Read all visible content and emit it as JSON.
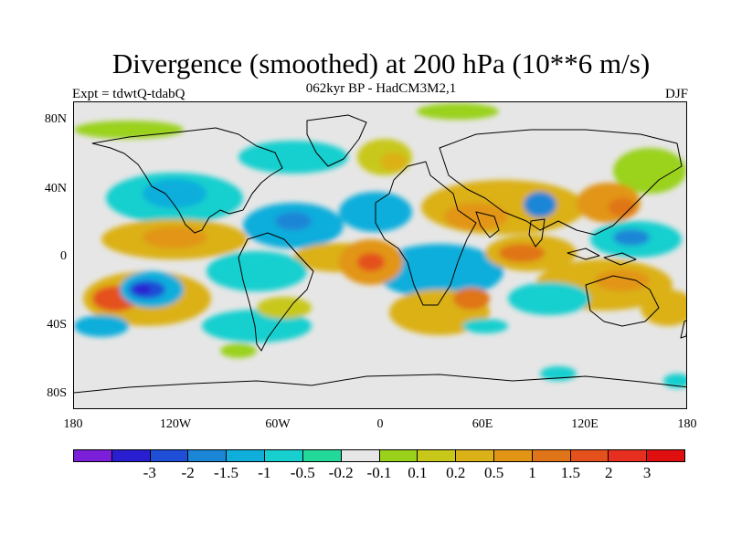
{
  "title": "Divergence (smoothed) at 200 hPa (10**6 m/s)",
  "subtitle": "062kyr BP - HadCM3M2,1",
  "left_label": "Expt = tdwtQ-tdabQ",
  "right_label": "DJF",
  "map": {
    "projection": "cylindrical equidistant",
    "background_color": "#e6e6e6",
    "lat_labels": [
      "80N",
      "40N",
      "0",
      "40S",
      "80S"
    ],
    "lon_labels": [
      "180",
      "120W",
      "60W",
      "0",
      "60E",
      "120E",
      "180"
    ]
  },
  "colorbar": {
    "colors": [
      "#7b1fd8",
      "#2a1fd0",
      "#1e4fd6",
      "#1b86d6",
      "#10aedb",
      "#18cfcf",
      "#22d99a",
      "#e6e6e6",
      "#9ad21b",
      "#c8c81a",
      "#dbb118",
      "#e29515",
      "#e07418",
      "#e4511c",
      "#e62f1e",
      "#e00f0f"
    ],
    "labels": [
      "-3",
      "-2",
      "-1.5",
      "-1",
      "-0.5",
      "-0.2",
      "-0.1",
      "0.1",
      "0.2",
      "0.5",
      "1",
      "1.5",
      "2",
      "3"
    ]
  }
}
